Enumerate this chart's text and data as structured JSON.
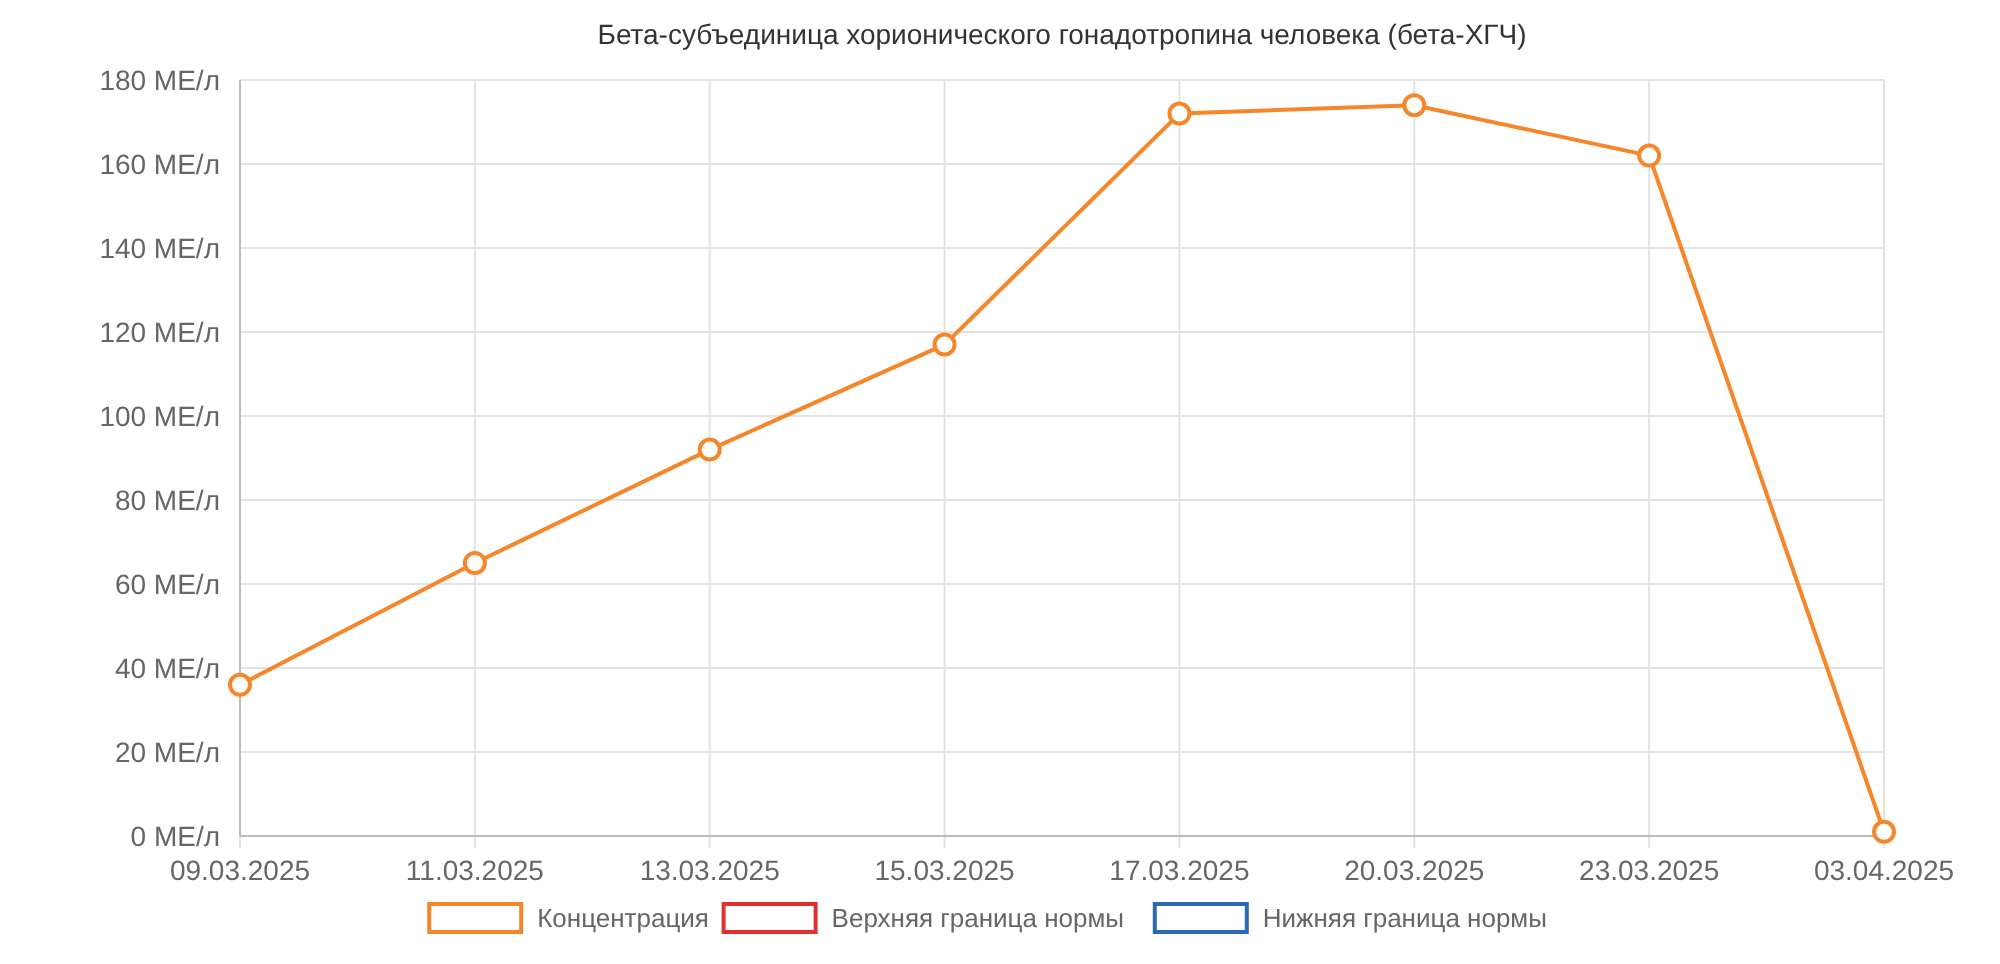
{
  "chart_data": {
    "type": "line",
    "title": "Бета-субъединица хорионического гонадотропина человека (бета-ХГЧ)",
    "categories": [
      "09.03.2025",
      "11.03.2025",
      "13.03.2025",
      "15.03.2025",
      "17.03.2025",
      "20.03.2025",
      "23.03.2025",
      "03.04.2025"
    ],
    "series": [
      {
        "name": "Концентрация",
        "color": "#f5862a",
        "values": [
          36,
          65,
          92,
          117,
          172,
          174,
          162,
          1
        ]
      },
      {
        "name": "Верхняя граница нормы",
        "color": "#e0312f",
        "values": [
          null,
          null,
          null,
          null,
          null,
          null,
          null,
          null
        ]
      },
      {
        "name": "Нижняя граница нормы",
        "color": "#2a6ab5",
        "values": [
          null,
          null,
          null,
          null,
          null,
          null,
          null,
          null
        ]
      }
    ],
    "ylim": [
      0,
      180
    ],
    "yticks": [
      {
        "value": 0,
        "label": "0 МЕ/л"
      },
      {
        "value": 20,
        "label": "20 МЕ/л"
      },
      {
        "value": 40,
        "label": "40 МЕ/л"
      },
      {
        "value": 60,
        "label": "60 МЕ/л"
      },
      {
        "value": 80,
        "label": "80 МЕ/л"
      },
      {
        "value": 100,
        "label": "100 МЕ/л"
      },
      {
        "value": 120,
        "label": "120 МЕ/л"
      },
      {
        "value": 140,
        "label": "140 МЕ/л"
      },
      {
        "value": 160,
        "label": "160 МЕ/л"
      },
      {
        "value": 180,
        "label": "180 МЕ/л"
      }
    ],
    "grid": true,
    "legend": "bottom",
    "marker": "circle",
    "line_style": "solid"
  }
}
